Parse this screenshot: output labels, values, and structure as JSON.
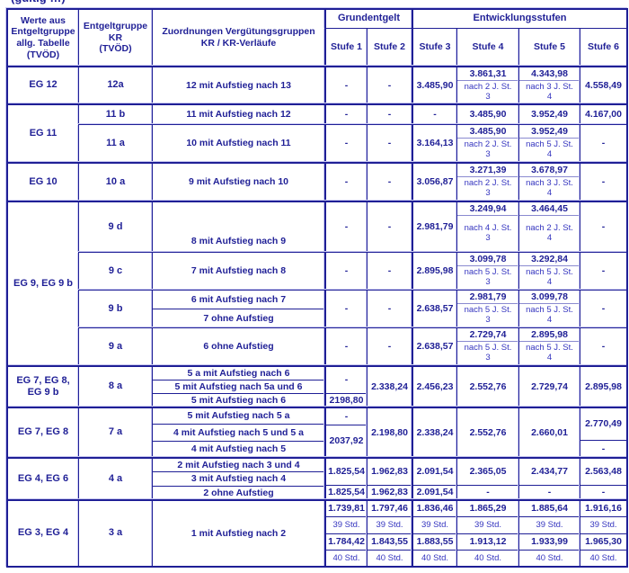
{
  "top_clipped_text": "(gültig …)",
  "colors": {
    "ink": "#1f1f96",
    "grid": "#1f1f96",
    "grid_highlight": "#c9c9f1",
    "note_text": "#3434bf",
    "background": "#ffffff"
  },
  "header": {
    "col_werte": "Werte aus\nEntgeltgruppe\nallg. Tabelle\n(TVÖD)",
    "col_kr": "Entgeltgruppe\nKR\n(TVÖD)",
    "col_zuordnung": "Zuordnungen Vergütungsgruppen\nKR / KR-Verläufe",
    "grundentgelt": "Grundentgelt",
    "entwicklungsstufen": "Entwicklungsstufen",
    "stufen": [
      "Stufe 1",
      "Stufe 2",
      "Stufe 3",
      "Stufe 4",
      "Stufe 5",
      "Stufe 6"
    ]
  },
  "rows": {
    "eg12": {
      "eg": "EG 12",
      "kr": "12a",
      "z": "12 mit Aufstieg nach 13",
      "s1": "-",
      "s2": "-",
      "s3": "3.485,90",
      "s4v": "3.861,31",
      "s4n": "nach 2 J. St.\n3",
      "s5v": "4.343,98",
      "s5n": "nach 3 J. St.\n4",
      "s6": "4.558,49"
    },
    "eg11": {
      "eg": "EG 11",
      "r11b": {
        "kr": "11 b",
        "z": "11 mit Aufstieg nach 12",
        "s1": "-",
        "s2": "-",
        "s3": "-",
        "s4": "3.485,90",
        "s5": "3.952,49",
        "s6": "4.167,00"
      },
      "r11a": {
        "kr": "11 a",
        "z": "10 mit Aufstieg nach 11",
        "s1": "-",
        "s2": "-",
        "s3": "3.164,13",
        "s4v": "3.485,90",
        "s4n": "nach 2 J. St.\n3",
        "s5v": "3.952,49",
        "s5n": "nach 5 J. St.\n4",
        "s6": "-"
      }
    },
    "eg10": {
      "eg": "EG 10",
      "kr": "10 a",
      "z": "9 mit Aufstieg nach 10",
      "s1": "-",
      "s2": "-",
      "s3": "3.056,87",
      "s4v": "3.271,39",
      "s4n": "nach 2 J. St.\n3",
      "s5v": "3.678,97",
      "s5n": "nach 3 J. St.\n4",
      "s6": "-"
    },
    "eg9": {
      "eg": "EG 9, EG 9 b",
      "r9d": {
        "kr": "9 d",
        "z": "8 mit Aufstieg nach 9",
        "s1": "-",
        "s2": "-",
        "s3": "2.981,79",
        "s4v": "3.249,94",
        "s4n": "nach 4 J. St.\n3",
        "s5v": "3.464,45",
        "s5n": "nach 2 J. St.\n4",
        "s6": "-"
      },
      "r9c": {
        "kr": "9 c",
        "z": "7 mit Aufstieg nach 8",
        "s1": "-",
        "s2": "-",
        "s3": "2.895,98",
        "s4v": "3.099,78",
        "s4n": "nach 5 J. St.\n3",
        "s5v": "3.292,84",
        "s5n": "nach 5 J. St.\n4",
        "s6": "-"
      },
      "r9b": {
        "kr": "9 b",
        "z1": "6 mit Aufstieg nach 7",
        "z2": "7 ohne Aufstieg",
        "s1": "-",
        "s2": "-",
        "s3": "2.638,57",
        "s4v": "2.981,79",
        "s4n": "nach 5 J. St.\n3",
        "s5v": "3.099,78",
        "s5n": "nach 5 J. St.\n4",
        "s6": "-"
      },
      "r9a": {
        "kr": "9 a",
        "z": "6 ohne Aufstieg",
        "s1": "-",
        "s2": "-",
        "s3": "2.638,57",
        "s4v": "2.729,74",
        "s4n": "nach 5 J. St.\n3",
        "s5v": "2.895,98",
        "s5n": "nach 5 J. St.\n4",
        "s6": "-"
      }
    },
    "eg789b": {
      "eg": "EG 7, EG 8,\nEG 9 b",
      "kr": "8 a",
      "z1": "5 a mit Aufstieg nach 6",
      "z2": "5 mit Aufstieg nach 5a und 6",
      "z3": "5 mit Aufstieg nach 6",
      "s1a": "-",
      "s1b": "2198,80",
      "s2": "2.338,24",
      "s3": "2.456,23",
      "s4": "2.552,76",
      "s5": "2.729,74",
      "s6": "2.895,98"
    },
    "eg78": {
      "eg": "EG 7, EG 8",
      "kr": "7 a",
      "z1": "5 mit Aufstieg nach 5 a",
      "z2": "4 mit Aufstieg nach 5 und 5 a",
      "z3": "4 mit Aufstieg nach 5",
      "s1a": "-",
      "s1b": "2037,92",
      "s2": "2.198,80",
      "s3": "2.338,24",
      "s4": "2.552,76",
      "s5": "2.660,01",
      "s6a": "2.770,49",
      "s6b": "-"
    },
    "eg46": {
      "eg": "EG 4, EG 6",
      "kr": "4 a",
      "z1": "2 mit Aufstieg nach 3 und 4",
      "z2": "3 mit Aufstieg nach 4",
      "z3": "2 ohne Aufstieg",
      "s1a": "1.825,54",
      "s2a": "1.962,83",
      "s3a": "2.091,54",
      "s4a": "2.365,05",
      "s5a": "2.434,77",
      "s6a": "2.563,48",
      "s1b": "1.825,54",
      "s2b": "1.962,83",
      "s3b": "2.091,54",
      "s4b": "-",
      "s5b": "-",
      "s6b": "-"
    },
    "eg34": {
      "eg": "EG 3, EG 4",
      "kr": "3 a",
      "z": "1 mit Aufstieg nach 2",
      "v39": [
        "1.739,81",
        "1.797,46",
        "1.836,46",
        "1.865,29",
        "1.885,64",
        "1.916,16"
      ],
      "h39": [
        "39 Std.",
        "39 Std.",
        "39 Std.",
        "39 Std.",
        "39 Std.",
        "39 Std."
      ],
      "v40": [
        "1.784,42",
        "1.843,55",
        "1.883,55",
        "1.913,12",
        "1.933,99",
        "1.965,30"
      ],
      "h40": [
        "40 Std.",
        "40 Std.",
        "40 Std.",
        "40 Std.",
        "40 Std.",
        "40 Std."
      ]
    }
  }
}
